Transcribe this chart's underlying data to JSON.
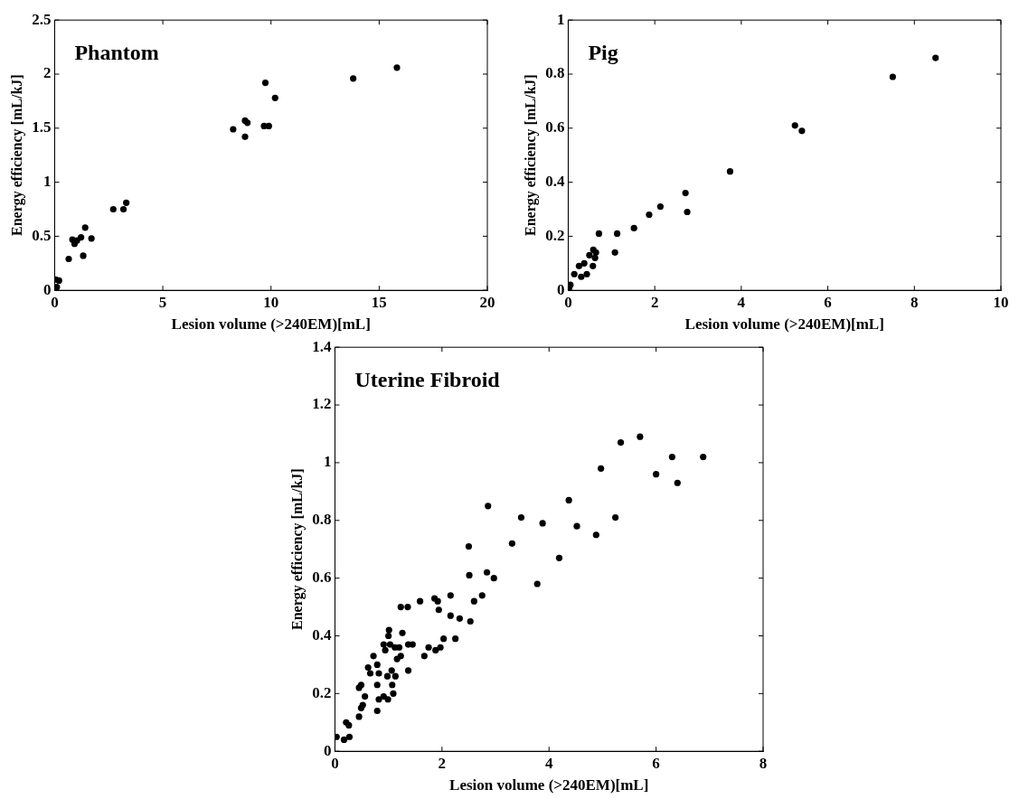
{
  "chart_data": [
    {
      "type": "scatter",
      "title": "Phantom",
      "xlabel": "Lesion volume (>240EM)[mL]",
      "ylabel": "Energy efficiency [mL/kJ]",
      "xlim": [
        0,
        20
      ],
      "xticks": [
        0,
        5,
        10,
        15,
        20
      ],
      "ylim": [
        0,
        2.5
      ],
      "yticks": [
        0,
        0.5,
        1,
        1.5,
        2,
        2.5
      ],
      "grid": false,
      "marker": "circle",
      "legend": false,
      "series": [
        {
          "color": "#000000",
          "x": [
            0.05,
            0.2,
            0.1,
            0.65,
            0.82,
            0.92,
            1.03,
            1.22,
            1.41,
            1.7,
            1.32,
            2.71,
            3.18,
            3.31,
            8.25,
            8.8,
            8.91,
            8.8,
            9.68,
            9.9,
            9.74,
            10.19,
            13.8,
            15.82
          ],
          "values": [
            0.1,
            0.09,
            0.03,
            0.29,
            0.47,
            0.43,
            0.46,
            0.49,
            0.58,
            0.48,
            0.32,
            0.75,
            0.75,
            0.81,
            1.49,
            1.57,
            1.55,
            1.42,
            1.52,
            1.52,
            1.92,
            1.78,
            1.96,
            2.06
          ]
        }
      ]
    },
    {
      "type": "scatter",
      "title": "Pig",
      "xlabel": "Lesion volume (>240EM)[mL]",
      "ylabel": "Energy efficiency [mL/kJ]",
      "xlim": [
        0,
        10
      ],
      "xticks": [
        0,
        2,
        4,
        6,
        8,
        10
      ],
      "ylim": [
        0,
        1
      ],
      "yticks": [
        0,
        0.2,
        0.4,
        0.6,
        0.8,
        1
      ],
      "grid": false,
      "marker": "circle",
      "legend": false,
      "series": [
        {
          "color": "#000000",
          "x": [
            8.49,
            7.5,
            5.24,
            5.4,
            3.74,
            2.71,
            2.75,
            2.13,
            1.87,
            1.52,
            1.13,
            1.08,
            0.71,
            0.58,
            0.64,
            0.49,
            0.62,
            0.57,
            0.37,
            0.25,
            0.14,
            0.43,
            0.3,
            0.05,
            0.02
          ],
          "values": [
            0.86,
            0.79,
            0.61,
            0.59,
            0.44,
            0.36,
            0.29,
            0.31,
            0.28,
            0.23,
            0.21,
            0.14,
            0.21,
            0.15,
            0.14,
            0.13,
            0.12,
            0.09,
            0.1,
            0.09,
            0.06,
            0.06,
            0.05,
            0.02,
            0.01
          ]
        }
      ]
    },
    {
      "type": "scatter",
      "title": "Uterine Fibroid",
      "xlabel": "Lesion volume (>240EM)[mL]",
      "ylabel": "Energy efficiency [mL/kJ]",
      "xlim": [
        0,
        8
      ],
      "xticks": [
        0,
        2,
        4,
        6,
        8
      ],
      "ylim": [
        0,
        1.4
      ],
      "yticks": [
        0,
        0.2,
        0.4,
        0.6,
        0.8,
        1,
        1.2,
        1.4
      ],
      "grid": false,
      "marker": "circle",
      "legend": false,
      "series": [
        {
          "color": "#000000",
          "x": [
            6.88,
            6.3,
            6.4,
            6.0,
            5.7,
            5.34,
            4.97,
            5.24,
            4.88,
            4.37,
            4.52,
            4.19,
            3.88,
            3.78,
            3.48,
            3.31,
            2.97,
            2.84,
            2.86,
            2.5,
            2.51,
            2.53,
            2.6,
            2.75,
            2.33,
            2.16,
            2.16,
            2.25,
            2.03,
            1.97,
            1.88,
            1.86,
            1.92,
            1.94,
            1.75,
            1.67,
            1.59,
            1.45,
            1.37,
            1.36,
            1.23,
            1.26,
            1.37,
            1.23,
            1.2,
            1.12,
            1.16,
            1.13,
            1.09,
            1.07,
            1.06,
            0.98,
            1.0,
            1.01,
            1.03,
            0.91,
            0.94,
            0.99,
            0.91,
            0.82,
            0.82,
            0.79,
            0.79,
            0.79,
            0.72,
            0.66,
            0.62,
            0.56,
            0.52,
            0.49,
            0.45,
            0.49,
            0.45,
            0.26,
            0.21,
            0.27,
            0.17,
            0.03
          ],
          "values": [
            1.02,
            1.02,
            0.93,
            0.96,
            1.09,
            1.07,
            0.98,
            0.81,
            0.75,
            0.87,
            0.78,
            0.67,
            0.79,
            0.58,
            0.81,
            0.72,
            0.6,
            0.62,
            0.85,
            0.71,
            0.61,
            0.45,
            0.52,
            0.54,
            0.46,
            0.54,
            0.47,
            0.39,
            0.39,
            0.36,
            0.35,
            0.53,
            0.52,
            0.49,
            0.36,
            0.33,
            0.52,
            0.37,
            0.37,
            0.5,
            0.5,
            0.41,
            0.28,
            0.33,
            0.36,
            0.36,
            0.32,
            0.26,
            0.2,
            0.23,
            0.28,
            0.26,
            0.4,
            0.42,
            0.37,
            0.37,
            0.35,
            0.18,
            0.19,
            0.18,
            0.27,
            0.3,
            0.23,
            0.14,
            0.33,
            0.27,
            0.29,
            0.19,
            0.16,
            0.15,
            0.12,
            0.23,
            0.22,
            0.09,
            0.1,
            0.05,
            0.04,
            0.05
          ]
        }
      ]
    }
  ]
}
